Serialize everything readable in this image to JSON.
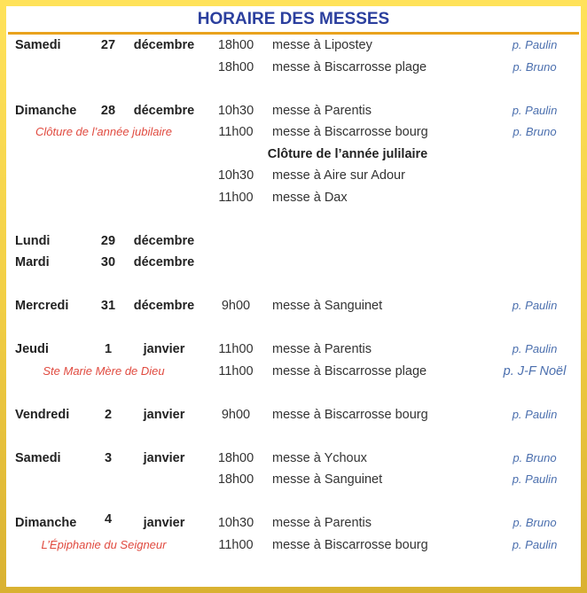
{
  "title": "HORAIRE DES MESSES",
  "colors": {
    "title": "#2b3f9e",
    "rule": "#e9a21d",
    "feast": "#e04a3f",
    "priest": "#4b6fae",
    "frame": "#f2cf45"
  },
  "lines": [
    {
      "day": "Samedi",
      "num": "27",
      "month": "décembre",
      "time": "18h00",
      "mass": "messe à  Lipostey",
      "priest": "p. Paulin"
    },
    {
      "time": "18h00",
      "mass": "messe à Biscarrosse plage",
      "priest": "p. Bruno"
    },
    {},
    {
      "day": "Dimanche",
      "num": "28",
      "month": "décembre",
      "time": "10h30",
      "mass": "messe à Parentis",
      "priest": "p. Paulin"
    },
    {
      "feast": "Clôture de l’année jubilaire",
      "time": "11h00",
      "mass": "messe à Biscarrosse bourg",
      "priest": "p. Bruno"
    },
    {
      "center": "Clôture de l’année julilaire"
    },
    {
      "time": "10h30",
      "mass": "messe à Aire sur Adour"
    },
    {
      "time": "11h00",
      "mass": "messe à Dax"
    },
    {},
    {
      "day": "Lundi",
      "num": "29",
      "month": "décembre"
    },
    {
      "day": "Mardi",
      "num": "30",
      "month": "décembre"
    },
    {},
    {
      "day": "Mercredi",
      "num": "31",
      "month": "décembre",
      "time": "9h00",
      "mass": "messe à Sanguinet",
      "priest": "p. Paulin"
    },
    {},
    {
      "day": "Jeudi",
      "num": "1",
      "month": "janvier",
      "time": "11h00",
      "mass": "messe à Parentis",
      "priest": "p. Paulin"
    },
    {
      "feast": "Ste Marie Mère de Dieu",
      "time": "11h00",
      "mass": "messe à Biscarrosse plage",
      "priest": "p. J-F Noël"
    },
    {},
    {
      "day": "Vendredi",
      "num": "2",
      "month": "janvier",
      "time": "9h00",
      "mass": "messe à Biscarrosse bourg",
      "priest": "p. Paulin"
    },
    {},
    {
      "day": "Samedi",
      "num": "3",
      "month": "janvier",
      "time": "18h00",
      "mass": "messe à Ychoux",
      "priest": "p. Bruno"
    },
    {
      "time": "18h00",
      "mass": "messe à Sanguinet",
      "priest": "p. Paulin"
    },
    {},
    {
      "day": "Dimanche",
      "num": "4",
      "month": "janvier",
      "time": "10h30",
      "mass": "messe à Parentis",
      "priest": "p. Bruno"
    },
    {
      "feast": "L’Épiphanie du Seigneur",
      "time": "11h00",
      "mass": "messe à Biscarrosse bourg",
      "priest": "p. Paulin"
    }
  ]
}
